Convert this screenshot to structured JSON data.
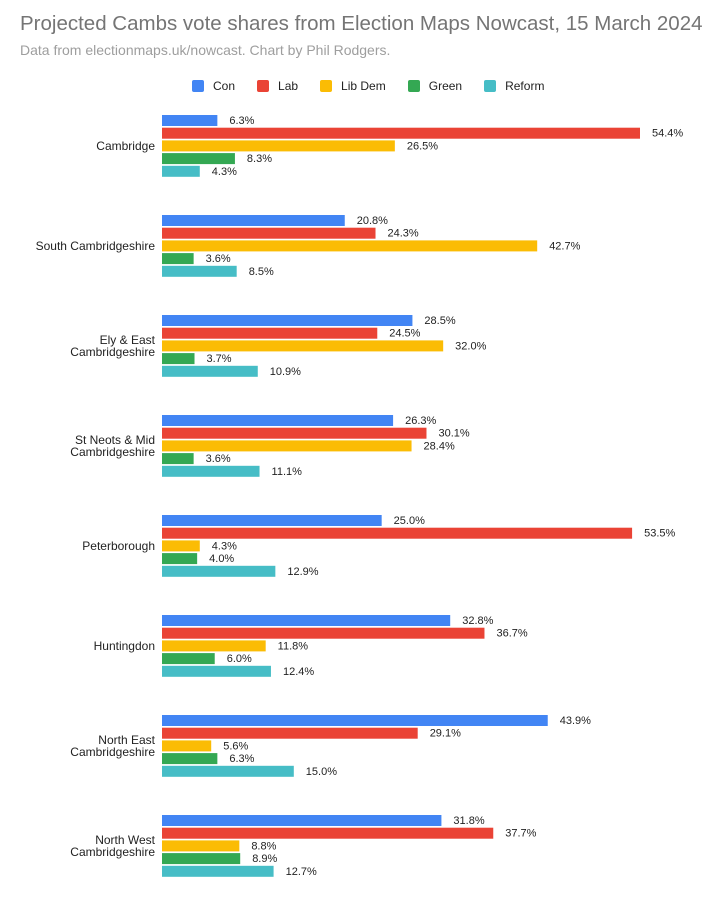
{
  "title": "Projected Cambs vote shares from Election Maps Nowcast, 15 March 2024",
  "subtitle": "Data from electionmaps.uk/nowcast. Chart by Phil Rodgers.",
  "chart_data": {
    "type": "bar",
    "orientation": "horizontal",
    "title": "Projected Cambs vote shares from Election Maps Nowcast, 15 March 2024",
    "legend_position": "top",
    "categories": [
      [
        "Cambridge"
      ],
      [
        "South Cambridgeshire"
      ],
      [
        "Ely & East",
        "Cambridgeshire"
      ],
      [
        "St Neots & Mid",
        "Cambridgeshire"
      ],
      [
        "Peterborough"
      ],
      [
        "Huntingdon"
      ],
      [
        "North East",
        "Cambridgeshire"
      ],
      [
        "North West",
        "Cambridgeshire"
      ]
    ],
    "series": [
      {
        "name": "Con",
        "color": "#4285f4",
        "values": [
          6.3,
          20.8,
          28.5,
          26.3,
          25.0,
          32.8,
          43.9,
          31.8
        ]
      },
      {
        "name": "Lab",
        "color": "#ea4335",
        "values": [
          54.4,
          24.3,
          24.5,
          30.1,
          53.5,
          36.7,
          29.1,
          37.7
        ]
      },
      {
        "name": "Lib Dem",
        "color": "#fbbc04",
        "values": [
          26.5,
          42.7,
          32.0,
          28.4,
          4.3,
          11.8,
          5.6,
          8.8
        ]
      },
      {
        "name": "Green",
        "color": "#34a853",
        "values": [
          8.3,
          3.6,
          3.7,
          3.6,
          4.0,
          6.0,
          6.3,
          8.9
        ]
      },
      {
        "name": "Reform",
        "color": "#46bdc6",
        "values": [
          4.3,
          8.5,
          10.9,
          11.1,
          12.9,
          12.4,
          15.0,
          12.7
        ]
      }
    ],
    "value_suffix": "%",
    "xlim": [
      0,
      60
    ],
    "grid": false
  }
}
